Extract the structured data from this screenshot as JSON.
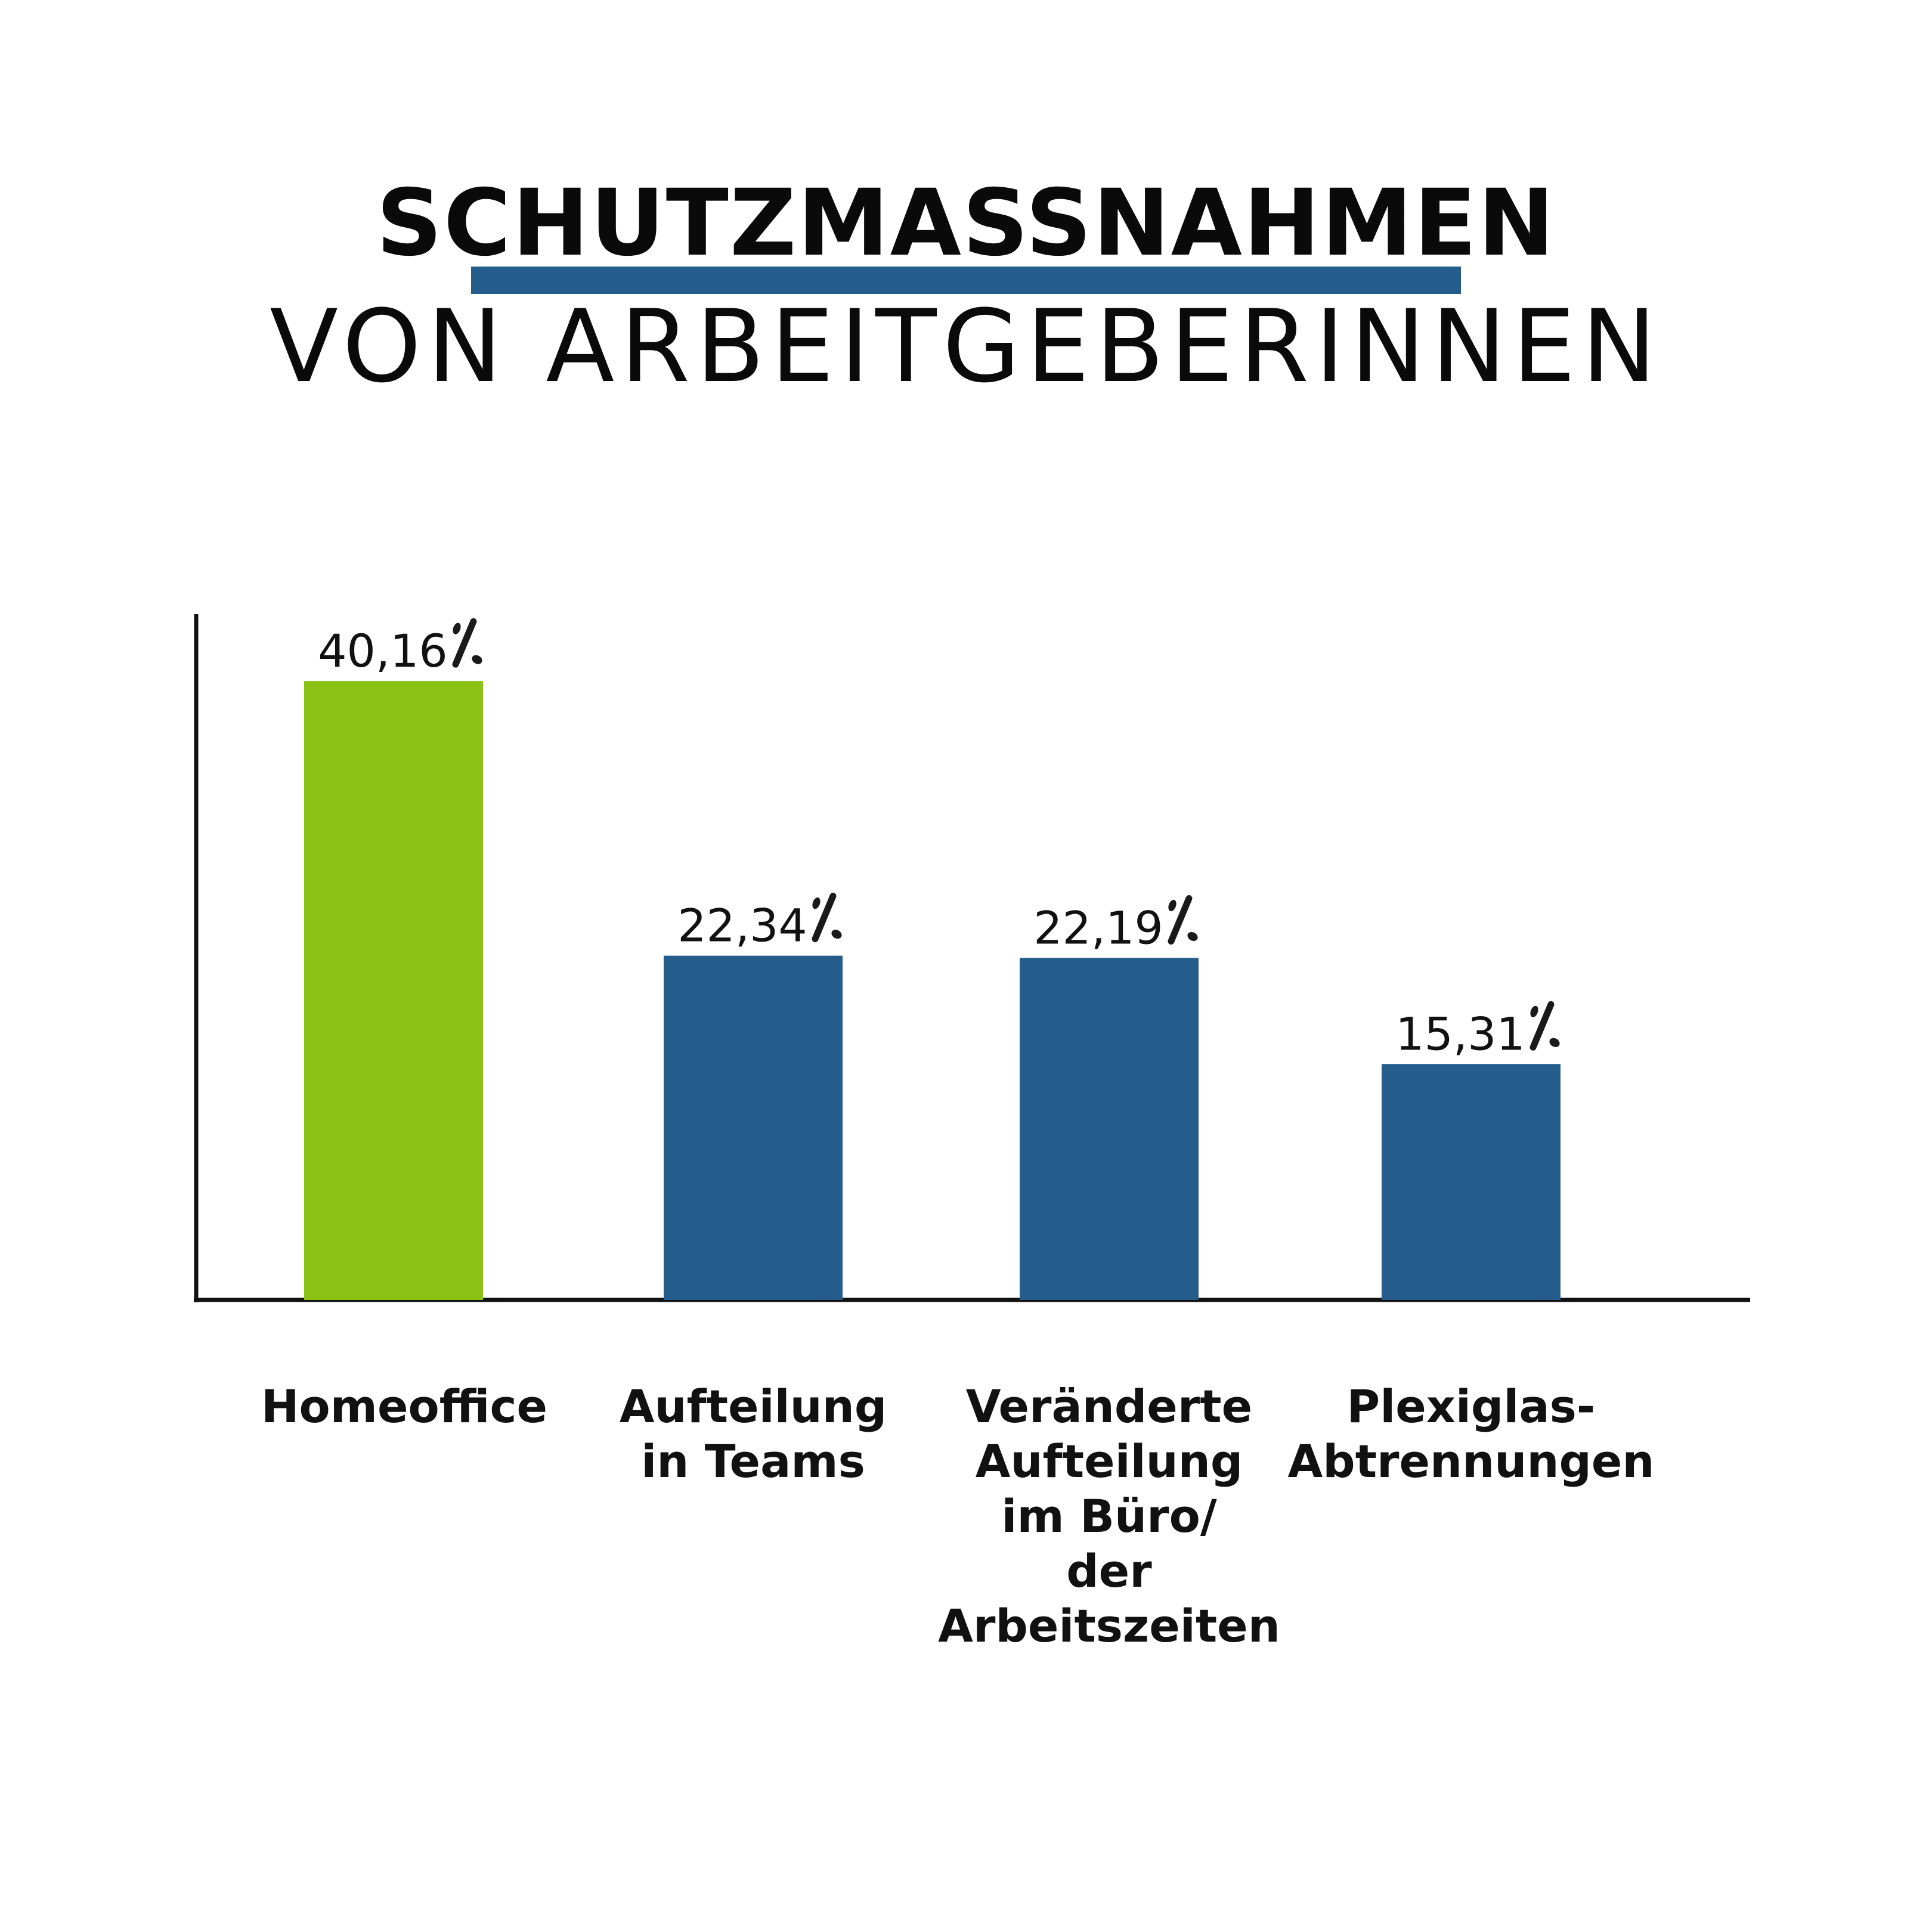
{
  "chart_data": {
    "type": "bar",
    "title": "SCHUTZMASSNAHMEN",
    "subtitle": "VON ARBEITGEBERINNEN",
    "categories": [
      [
        "Homeoffice"
      ],
      [
        "Aufteilung",
        "in Teams"
      ],
      [
        "Veränderte",
        "Aufteilung",
        "im Büro/",
        "der",
        "Arbeitszeiten"
      ],
      [
        "Plexiglas-",
        "Abtrennungen"
      ]
    ],
    "values": [
      40.16,
      22.34,
      22.19,
      15.31
    ],
    "data_labels": [
      "40,16",
      "22,34",
      "22,19",
      "15,31"
    ],
    "unit_symbol": "%",
    "xlabel": "",
    "ylabel": "",
    "ylim": [
      0,
      44.5
    ],
    "grid": false,
    "colors": [
      "#8bc114",
      "#245d8c",
      "#245d8c",
      "#245d8c"
    ],
    "title_underline_color": "#245d8c"
  }
}
